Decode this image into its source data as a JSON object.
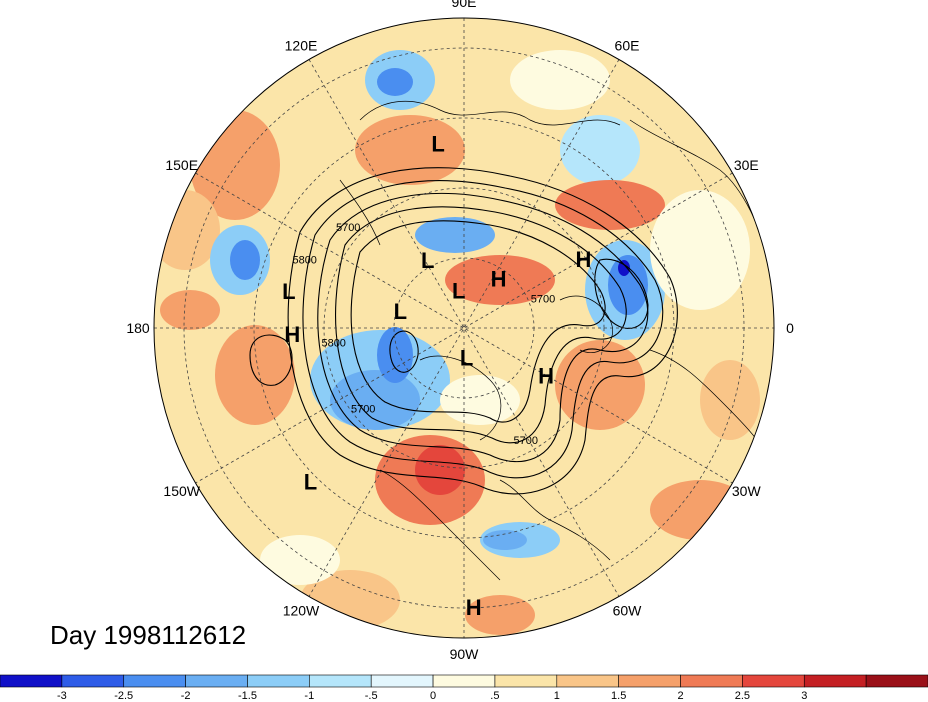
{
  "title": "Day 1998112612",
  "longitude_labels": [
    {
      "text": "90E",
      "lon": 90
    },
    {
      "text": "60E",
      "lon": 60
    },
    {
      "text": "30E",
      "lon": 30
    },
    {
      "text": "0",
      "lon": 0
    },
    {
      "text": "30W",
      "lon": -30
    },
    {
      "text": "60W",
      "lon": -60
    },
    {
      "text": "90W",
      "lon": -90
    },
    {
      "text": "120W",
      "lon": -120
    },
    {
      "text": "150W",
      "lon": -150
    },
    {
      "text": "180",
      "lon": 180
    },
    {
      "text": "150E",
      "lon": 150
    },
    {
      "text": "120E",
      "lon": 120
    }
  ],
  "pressure_centers": [
    {
      "type": "L",
      "lon": 98,
      "lat": 28
    },
    {
      "type": "L",
      "lon": 168,
      "lat": 30
    },
    {
      "type": "L",
      "lon": 118,
      "lat": 62
    },
    {
      "type": "L",
      "lon": 98,
      "lat": 76
    },
    {
      "type": "L",
      "lon": 165,
      "lat": 66
    },
    {
      "type": "L",
      "lon": -85,
      "lat": 79
    },
    {
      "type": "L",
      "lon": -135,
      "lat": 20
    },
    {
      "type": "H",
      "lon": 55,
      "lat": 68
    },
    {
      "type": "H",
      "lon": 30,
      "lat": 42
    },
    {
      "type": "H",
      "lon": -178,
      "lat": 32
    },
    {
      "type": "H",
      "lon": -30,
      "lat": 56
    },
    {
      "type": "H",
      "lon": -88,
      "lat": 6
    }
  ],
  "contour_labels": [
    {
      "text": "5700",
      "lon": 140,
      "lat": 38
    },
    {
      "text": "5800",
      "lon": 158,
      "lat": 32
    },
    {
      "text": "5800",
      "lon": -172,
      "lat": 44
    },
    {
      "text": "5700",
      "lon": 18,
      "lat": 60
    },
    {
      "text": "5700",
      "lon": -140,
      "lat": 44
    },
    {
      "text": "5700",
      "lon": -62,
      "lat": 44
    }
  ],
  "colorbar": {
    "colors": [
      "#1010c8",
      "#2e5ce8",
      "#4a8ef0",
      "#6aaef2",
      "#8ccdf7",
      "#b5e6fb",
      "#e3f6fd",
      "#fefbe0",
      "#fbe5a9",
      "#f9c588",
      "#f5a06a",
      "#ef7a55",
      "#e4463c",
      "#c41f23",
      "#9a1018"
    ],
    "labels": [
      "-3",
      "-2.5",
      "-2",
      "-1.5",
      "-1",
      "-.5",
      "0",
      ".5",
      "1",
      "1.5",
      "2",
      "2.5",
      "3"
    ]
  }
}
